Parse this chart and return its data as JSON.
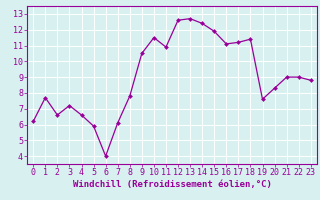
{
  "x": [
    0,
    1,
    2,
    3,
    4,
    5,
    6,
    7,
    8,
    9,
    10,
    11,
    12,
    13,
    14,
    15,
    16,
    17,
    18,
    19,
    20,
    21,
    22,
    23
  ],
  "y": [
    6.2,
    7.7,
    6.6,
    7.2,
    6.6,
    5.9,
    4.0,
    6.1,
    7.8,
    10.5,
    11.5,
    10.9,
    12.6,
    12.7,
    12.4,
    11.9,
    11.1,
    11.2,
    11.4,
    7.6,
    8.3,
    9.0,
    9.0,
    8.8
  ],
  "line_color": "#990099",
  "marker": "D",
  "marker_size": 2.0,
  "bg_color": "#d8f0f0",
  "grid_color": "#b0d8d8",
  "xlim": [
    -0.5,
    23.5
  ],
  "ylim": [
    3.5,
    13.5
  ],
  "yticks": [
    4,
    5,
    6,
    7,
    8,
    9,
    10,
    11,
    12,
    13
  ],
  "xticks": [
    0,
    1,
    2,
    3,
    4,
    5,
    6,
    7,
    8,
    9,
    10,
    11,
    12,
    13,
    14,
    15,
    16,
    17,
    18,
    19,
    20,
    21,
    22,
    23
  ],
  "tick_color": "#990099",
  "label_color": "#990099",
  "spine_color": "#990099",
  "xlabel": "Windchill (Refroidissement éolien,°C)",
  "font_size_xlabel": 6.5,
  "font_size_ticks": 6.0
}
